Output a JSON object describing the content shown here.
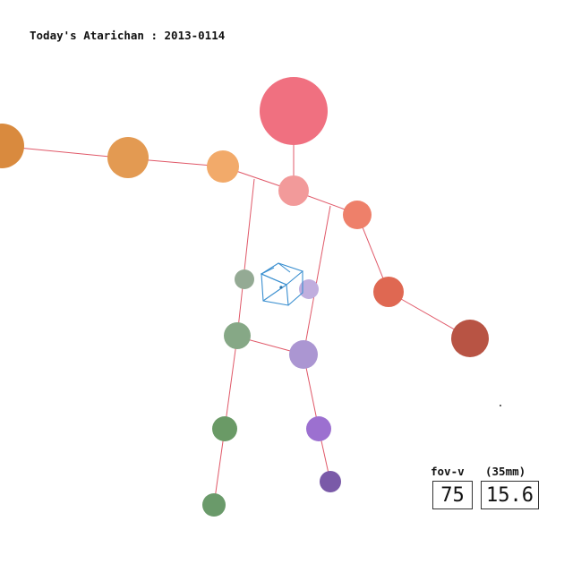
{
  "title": "Today's Atarichan : 2013-0114",
  "controls": {
    "fov_label": "fov-v",
    "lens_label": "(35mm)",
    "fov_value": "75",
    "lens_value": "15.6"
  },
  "colors": {
    "bone_line": "#e05868",
    "cube_stroke": "#3a8fd0",
    "head": "#f07080",
    "neck": "#f29a9a",
    "shoulder_left": "#f2aa6a",
    "upper_arm_left": "#e39a52",
    "hand_left": "#d98a3e",
    "shoulder_right": "#ee806a",
    "elbow_right": "#df6852",
    "hand_right": "#b85444",
    "hip_left": "#94aa94",
    "knee_left": "#86a886",
    "shin_left": "#6a9a66",
    "foot_left": "#6a9a6a",
    "hip_right": "#c0aede",
    "knee_right": "#ab96d2",
    "shin_right": "#9c70d0",
    "foot_right": "#7a5aa8"
  },
  "icons": {
    "cube": "wireframe-cube-icon"
  }
}
